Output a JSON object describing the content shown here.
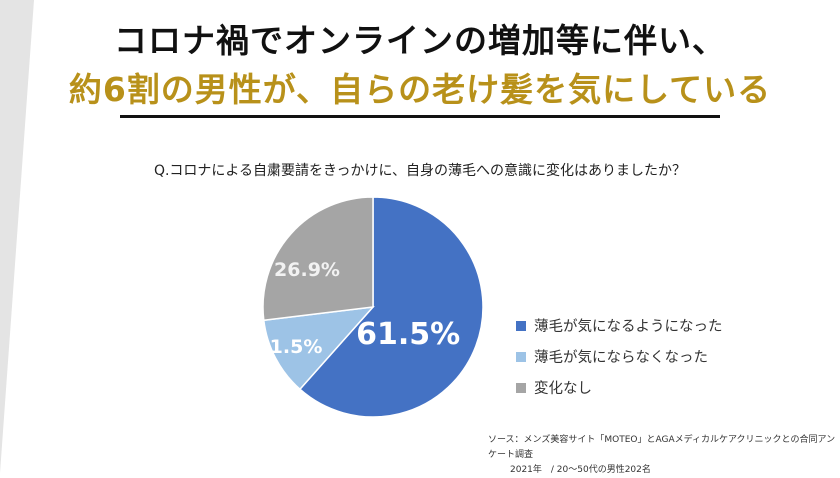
{
  "title_line1": "コロナ禍でオンラインの増加等に伴い、",
  "title_line2": "約6割の男性が、自らの老け髪を気にしている",
  "chart_data": {
    "type": "pie",
    "question": "Q.コロナによる自粛要請をきっかけに、自身の薄毛への意識に変化はありましたか？",
    "slices": [
      {
        "label": "薄毛が気になるようになった",
        "value": 61.5,
        "display": "61.5%",
        "color": "#4472c4"
      },
      {
        "label": "薄毛が気にならなくなった",
        "value": 11.5,
        "display": "11.5%",
        "color": "#9dc3e6"
      },
      {
        "label": "変化なし",
        "value": 26.9,
        "display": "26.9%",
        "color": "#a5a5a5"
      }
    ],
    "legend_position": "right"
  },
  "source": {
    "line1": "ソース：メンズ美容サイト「MOTEO」とAGAメディカルケアクリニックとの合同アンケート調査",
    "line2": "2021年　/ 20～50代の男性202名"
  }
}
